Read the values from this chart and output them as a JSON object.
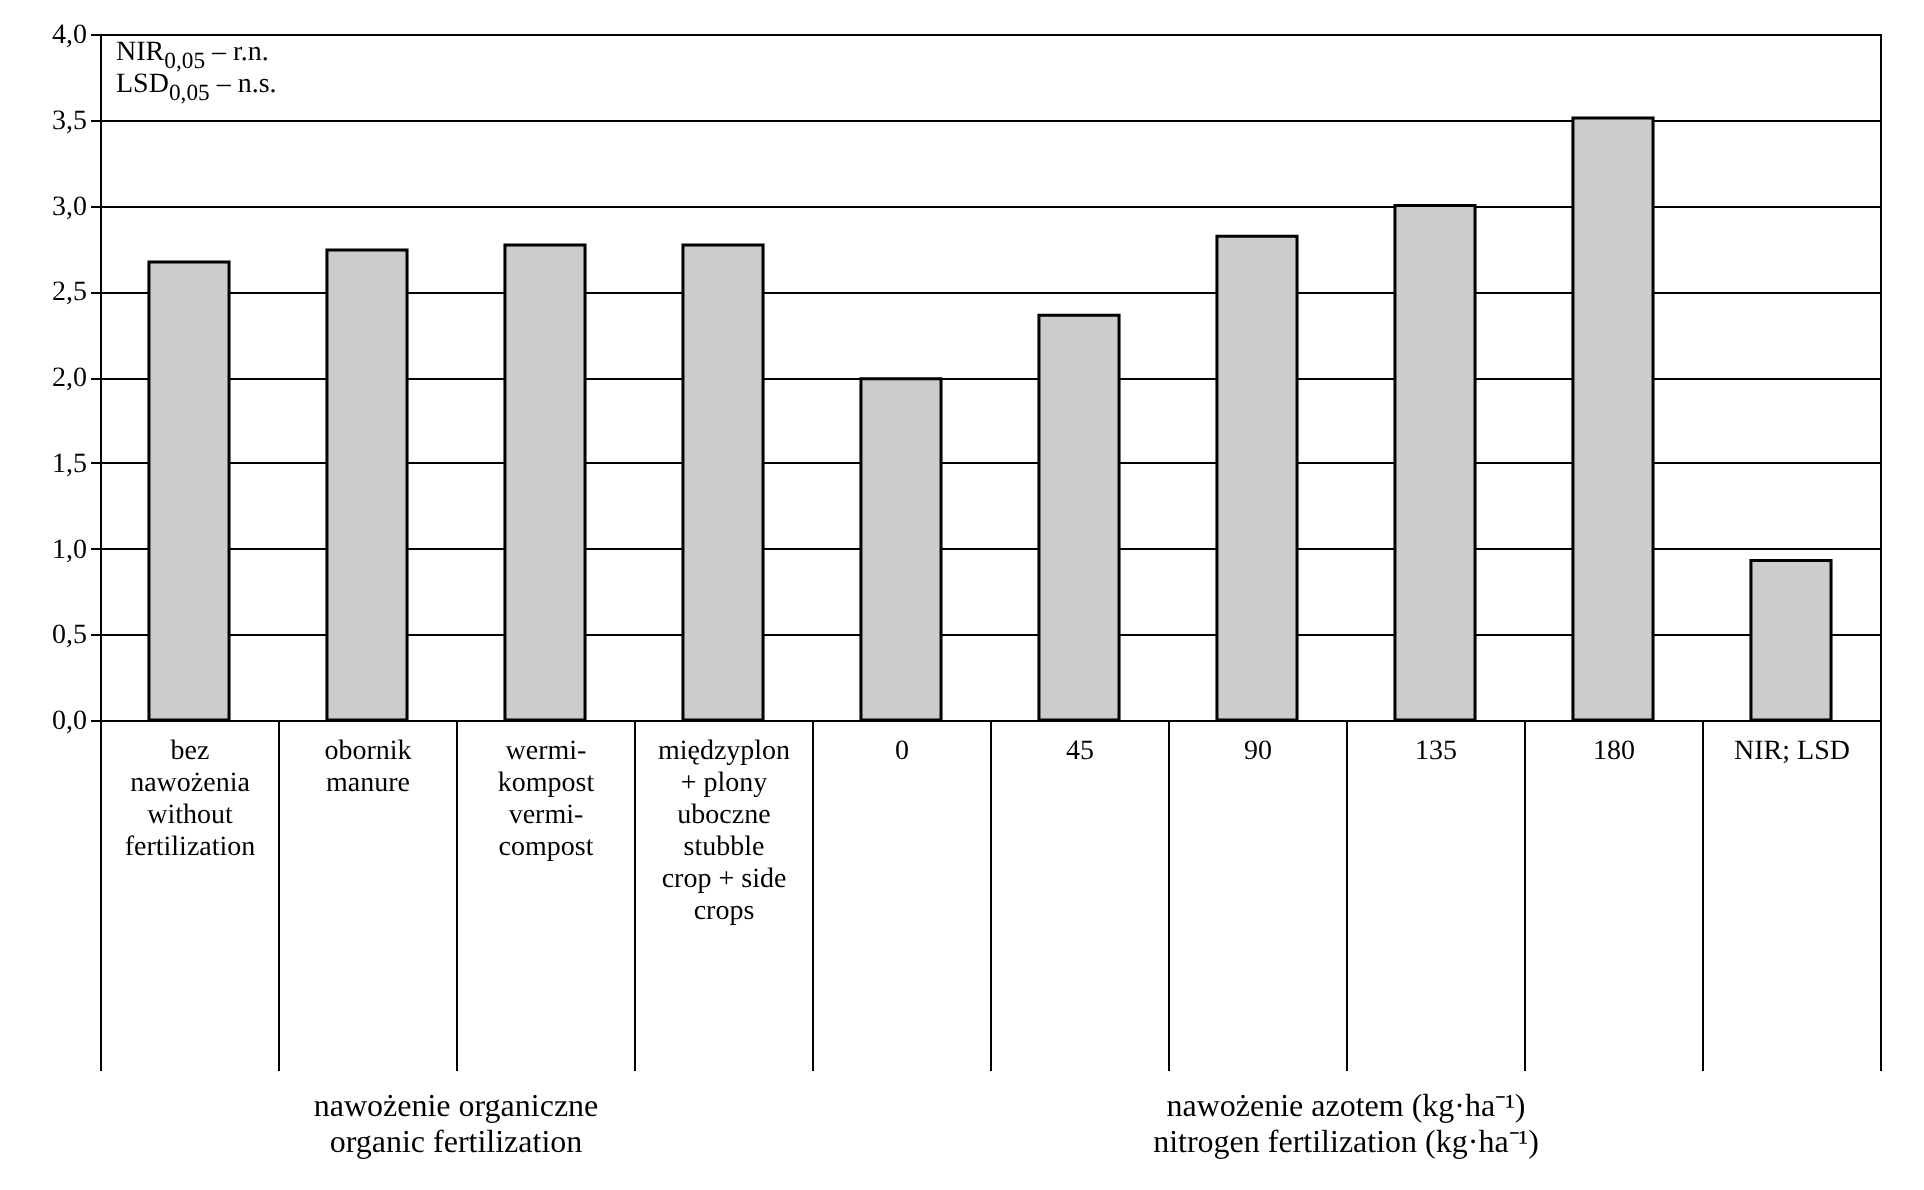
{
  "chart_data": {
    "type": "bar",
    "categories": [
      "bez\nnawożenia\nwithout\nfertilization",
      "obornik\nmanure",
      "wermi-\nkompost\nvermi-\ncompost",
      "międzyplon\n+ plony\nuboczne\nstubble\ncrop + side\ncrops",
      "0",
      "45",
      "90",
      "135",
      "180",
      "NIR; LSD"
    ],
    "values": [
      2.67,
      2.74,
      2.77,
      2.77,
      1.99,
      2.36,
      2.82,
      3.0,
      3.51,
      0.93
    ],
    "color": "#cccccc",
    "ylim": [
      0,
      4
    ],
    "yticks": [
      {
        "value": 0,
        "label": "0,0"
      },
      {
        "value": 0.5,
        "label": "0,5"
      },
      {
        "value": 1,
        "label": "1,0"
      },
      {
        "value": 1.5,
        "label": "1,5"
      },
      {
        "value": 2,
        "label": "2,0"
      },
      {
        "value": 2.5,
        "label": "2,5"
      },
      {
        "value": 3,
        "label": "3,0"
      },
      {
        "value": 3.5,
        "label": "3,5"
      },
      {
        "value": 4,
        "label": "4,0"
      }
    ],
    "grid": "y",
    "annotations": [
      "NIR$_{0,05}$ – r.n.",
      "LSD$_{0,05}$ – n.s.",
      "nawożenie organiczne\norganic fertilization",
      "nawożenie azotem (kg·ha⁻¹)\nnitrogen fertilization (kg·ha⁻¹)"
    ]
  }
}
